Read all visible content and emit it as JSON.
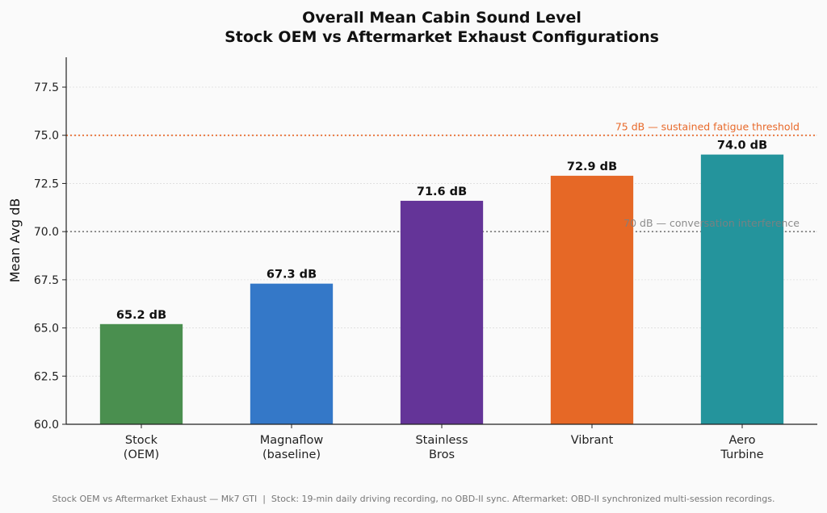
{
  "chart_data": {
    "type": "bar",
    "title": "Overall Mean Cabin Sound Level",
    "subtitle": "Stock OEM vs Aftermarket Exhaust Configurations",
    "xlabel": "",
    "ylabel": "Mean Avg dB",
    "categories": [
      [
        "Stock",
        "(OEM)"
      ],
      [
        "Magnaflow",
        "(baseline)"
      ],
      [
        "Stainless",
        "Bros"
      ],
      [
        "Vibrant"
      ],
      [
        "Aero",
        "Turbine"
      ]
    ],
    "values": [
      65.2,
      67.3,
      71.6,
      72.9,
      74.0
    ],
    "data_labels": [
      "65.2 dB",
      "67.3 dB",
      "71.6 dB",
      "72.9 dB",
      "74.0 dB"
    ],
    "colors": [
      "#4a8f4f",
      "#3478c8",
      "#643498",
      "#e66826",
      "#24949c"
    ],
    "ylim": [
      60,
      79.05
    ],
    "yticks": [
      60.0,
      62.5,
      65.0,
      67.5,
      70.0,
      72.5,
      75.0,
      77.5
    ],
    "ytick_labels": [
      "60.0",
      "62.5",
      "65.0",
      "67.5",
      "70.0",
      "72.5",
      "75.0",
      "77.5"
    ],
    "grid": "horizontal",
    "reference_lines": [
      {
        "value": 75,
        "label": "75 dB — sustained fatigue threshold",
        "color": "#e8692a"
      },
      {
        "value": 70,
        "label": "70 dB — conversation interference",
        "color": "#808080"
      }
    ]
  },
  "footer": "Stock OEM vs Aftermarket Exhaust — Mk7 GTI  |  Stock: 19-min daily driving recording, no OBD-II sync. Aftermarket: OBD-II synchronized multi-session recordings."
}
